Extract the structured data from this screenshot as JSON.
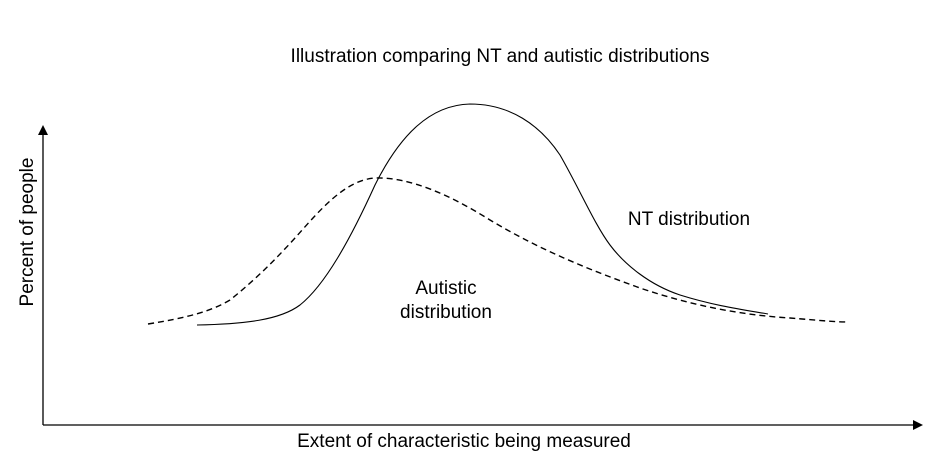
{
  "title": "Illustration comparing NT and autistic distributions",
  "axes": {
    "x_label": "Extent of characteristic  being measured",
    "y_label": "Percent  of people"
  },
  "curves": {
    "nt": {
      "label": "NT distribution",
      "line_style": "solid",
      "color": "#000000"
    },
    "autistic": {
      "label_line1": "Autistic",
      "label_line2": "distribution",
      "line_style": "dashed",
      "color": "#000000"
    }
  }
}
